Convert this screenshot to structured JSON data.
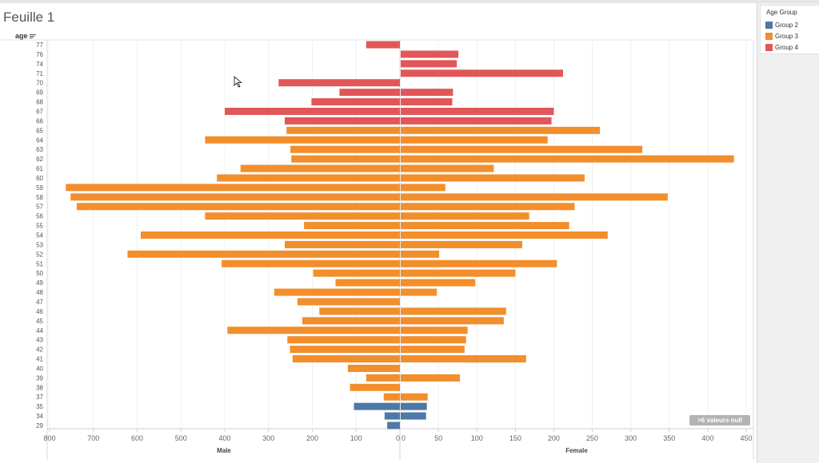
{
  "sheet": {
    "title": "Feuille 1",
    "row_header": "age"
  },
  "legend": {
    "title": "Age Group",
    "items": [
      {
        "label": "Group 2",
        "color": "#4e79a7"
      },
      {
        "label": "Group 3",
        "color": "#f28e2b"
      },
      {
        "label": "Group 4",
        "color": "#e15759"
      }
    ]
  },
  "null_badge": ">6 valeurs null",
  "icons": {
    "sort": "sort-descending-icon",
    "cursor": "mouse-pointer-icon"
  },
  "chart_data": {
    "type": "bar",
    "orientation": "horizontal",
    "layout": "butterfly",
    "categories": [
      "77",
      "76",
      "74",
      "71",
      "70",
      "69",
      "68",
      "67",
      "66",
      "65",
      "64",
      "63",
      "62",
      "61",
      "60",
      "59",
      "58",
      "57",
      "56",
      "55",
      "54",
      "53",
      "52",
      "51",
      "50",
      "49",
      "48",
      "47",
      "46",
      "45",
      "44",
      "43",
      "42",
      "41",
      "40",
      "39",
      "38",
      "37",
      "35",
      "34",
      "29"
    ],
    "group": [
      "Group 4",
      "Group 4",
      "Group 4",
      "Group 4",
      "Group 4",
      "Group 4",
      "Group 4",
      "Group 4",
      "Group 4",
      "Group 3",
      "Group 3",
      "Group 3",
      "Group 3",
      "Group 3",
      "Group 3",
      "Group 3",
      "Group 3",
      "Group 3",
      "Group 3",
      "Group 3",
      "Group 3",
      "Group 3",
      "Group 3",
      "Group 3",
      "Group 3",
      "Group 3",
      "Group 3",
      "Group 3",
      "Group 3",
      "Group 3",
      "Group 3",
      "Group 3",
      "Group 3",
      "Group 3",
      "Group 3",
      "Group 3",
      "Group 3",
      "Group 3",
      "Group 2",
      "Group 2",
      "Group 2"
    ],
    "series": [
      {
        "name": "Male",
        "values": [
          77,
          0,
          0,
          0,
          277,
          138,
          202,
          400,
          263,
          259,
          445,
          250,
          248,
          364,
          418,
          763,
          752,
          738,
          445,
          219,
          592,
          263,
          622,
          407,
          198,
          147,
          287,
          234,
          184,
          223,
          394,
          257,
          251,
          245,
          119,
          77,
          114,
          37,
          105,
          35,
          29
        ]
      },
      {
        "name": "Female",
        "values": [
          0,
          76,
          74,
          212,
          0,
          69,
          68,
          200,
          197,
          260,
          192,
          315,
          434,
          122,
          240,
          59,
          348,
          227,
          168,
          220,
          270,
          159,
          51,
          204,
          150,
          98,
          48,
          0,
          138,
          135,
          88,
          86,
          84,
          164,
          0,
          78,
          0,
          36,
          35,
          34,
          0
        ]
      }
    ],
    "xlabel_left": "Male",
    "xlabel_right": "Female",
    "xlim_left": [
      0,
      800
    ],
    "xlim_right": [
      0,
      450
    ],
    "ticks_left": [
      800,
      700,
      600,
      500,
      400,
      300,
      200,
      100,
      0
    ],
    "ticks_right": [
      0,
      50,
      100,
      150,
      200,
      250,
      300,
      350,
      400,
      450
    ],
    "grid": true
  }
}
